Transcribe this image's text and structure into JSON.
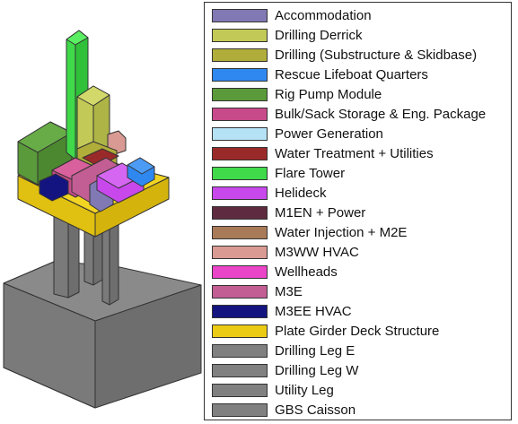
{
  "legend": {
    "items": [
      {
        "key": "accommodation",
        "label": "Accommodation",
        "color": "#8079b3"
      },
      {
        "key": "drilling-derrick",
        "label": "Drilling Derrick",
        "color": "#c2c956"
      },
      {
        "key": "drilling-substructure",
        "label": "Drilling (Substructure & Skidbase)",
        "color": "#b0ad3a"
      },
      {
        "key": "rescue-lifeboat",
        "label": "Rescue Lifeboat Quarters",
        "color": "#2f88f0"
      },
      {
        "key": "rig-pump",
        "label": "Rig Pump Module",
        "color": "#5a9a3a"
      },
      {
        "key": "bulk-sack",
        "label": "Bulk/Sack Storage & Eng. Package",
        "color": "#c84a8a"
      },
      {
        "key": "power-generation",
        "label": "Power Generation",
        "color": "#b6e2f6"
      },
      {
        "key": "water-treatment",
        "label": "Water Treatment + Utilities",
        "color": "#9a2a2a"
      },
      {
        "key": "flare-tower",
        "label": "Flare Tower",
        "color": "#3fd94a"
      },
      {
        "key": "helideck",
        "label": "Helideck",
        "color": "#c848ec"
      },
      {
        "key": "m1en-power",
        "label": "M1EN + Power",
        "color": "#5e2a40"
      },
      {
        "key": "water-injection",
        "label": "Water Injection + M2E",
        "color": "#a87a58"
      },
      {
        "key": "m3ww-hvac",
        "label": "M3WW HVAC",
        "color": "#d89a92"
      },
      {
        "key": "wellheads",
        "label": "Wellheads",
        "color": "#ea44c8"
      },
      {
        "key": "m3e",
        "label": "M3E",
        "color": "#c25e94"
      },
      {
        "key": "m3ee-hvac",
        "label": "M3EE HVAC",
        "color": "#141480"
      },
      {
        "key": "plate-girder",
        "label": "Plate Girder Deck Structure",
        "color": "#eccb14"
      },
      {
        "key": "drilling-leg-e",
        "label": "Drilling Leg E",
        "color": "#808080"
      },
      {
        "key": "drilling-leg-w",
        "label": "Drilling Leg W",
        "color": "#808080"
      },
      {
        "key": "utility-leg",
        "label": "Utility Leg",
        "color": "#808080"
      },
      {
        "key": "gbs-caisson",
        "label": "GBS Caisson",
        "color": "#808080"
      }
    ]
  }
}
